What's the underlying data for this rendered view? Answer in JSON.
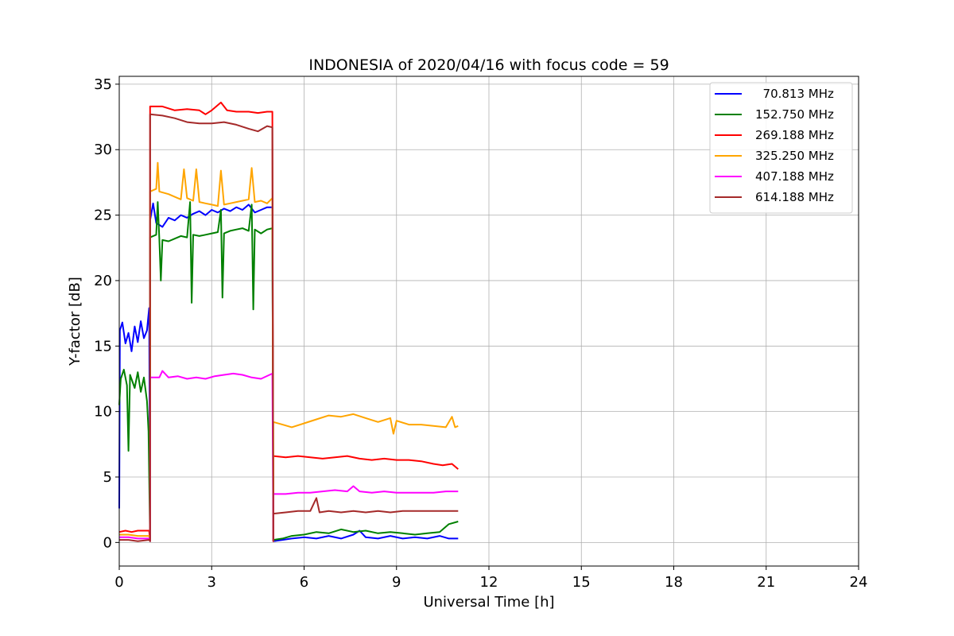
{
  "chart_data": {
    "type": "line",
    "title": "INDONESIA of 2020/04/16 with focus code = 59",
    "xlabel": "Universal Time [h]",
    "ylabel": "Y-factor [dB]",
    "xlim": [
      0,
      24
    ],
    "ylim": [
      -1.8,
      35.6
    ],
    "xticks": [
      0,
      3,
      6,
      9,
      12,
      15,
      18,
      21,
      24
    ],
    "yticks": [
      0,
      5,
      10,
      15,
      20,
      25,
      30,
      35
    ],
    "grid": true,
    "legend_position": "top-right",
    "series": [
      {
        "name": "  70.813 MHz",
        "color": "#0000ff",
        "points": [
          [
            0,
            2.6
          ],
          [
            0.02,
            16.2
          ],
          [
            0.1,
            16.8
          ],
          [
            0.2,
            15.2
          ],
          [
            0.3,
            16.0
          ],
          [
            0.4,
            14.6
          ],
          [
            0.5,
            16.5
          ],
          [
            0.6,
            15.3
          ],
          [
            0.7,
            16.9
          ],
          [
            0.8,
            15.6
          ],
          [
            0.9,
            16.2
          ],
          [
            0.97,
            17.9
          ],
          [
            1.0,
            0.1
          ],
          [
            1.0,
            24.6
          ],
          [
            1.1,
            25.9
          ],
          [
            1.2,
            24.4
          ],
          [
            1.4,
            24.1
          ],
          [
            1.6,
            24.8
          ],
          [
            1.8,
            24.6
          ],
          [
            2.0,
            25.0
          ],
          [
            2.2,
            24.8
          ],
          [
            2.4,
            25.1
          ],
          [
            2.6,
            25.3
          ],
          [
            2.8,
            25.0
          ],
          [
            3.0,
            25.4
          ],
          [
            3.2,
            25.2
          ],
          [
            3.4,
            25.5
          ],
          [
            3.6,
            25.3
          ],
          [
            3.8,
            25.6
          ],
          [
            4.0,
            25.4
          ],
          [
            4.2,
            25.8
          ],
          [
            4.4,
            25.2
          ],
          [
            4.6,
            25.4
          ],
          [
            4.8,
            25.6
          ],
          [
            4.97,
            25.6
          ],
          [
            5.0,
            0.1
          ],
          [
            5.0,
            0.1
          ],
          [
            5.3,
            0.2
          ],
          [
            5.6,
            0.3
          ],
          [
            6.0,
            0.4
          ],
          [
            6.4,
            0.3
          ],
          [
            6.8,
            0.5
          ],
          [
            7.2,
            0.3
          ],
          [
            7.6,
            0.6
          ],
          [
            7.8,
            0.9
          ],
          [
            8.0,
            0.4
          ],
          [
            8.4,
            0.3
          ],
          [
            8.8,
            0.5
          ],
          [
            9.2,
            0.3
          ],
          [
            9.6,
            0.4
          ],
          [
            10.0,
            0.3
          ],
          [
            10.4,
            0.5
          ],
          [
            10.7,
            0.3
          ],
          [
            11.0,
            0.3
          ]
        ]
      },
      {
        "name": "152.750 MHz",
        "color": "#008000",
        "points": [
          [
            0,
            10.5
          ],
          [
            0.05,
            12.5
          ],
          [
            0.15,
            13.2
          ],
          [
            0.25,
            12.0
          ],
          [
            0.3,
            7.0
          ],
          [
            0.35,
            12.8
          ],
          [
            0.5,
            11.8
          ],
          [
            0.6,
            13.0
          ],
          [
            0.7,
            11.5
          ],
          [
            0.8,
            12.6
          ],
          [
            0.9,
            10.8
          ],
          [
            0.95,
            8.5
          ],
          [
            1.0,
            0.1
          ],
          [
            1.0,
            23.3
          ],
          [
            1.2,
            23.5
          ],
          [
            1.25,
            26.0
          ],
          [
            1.3,
            23.2
          ],
          [
            1.35,
            20.0
          ],
          [
            1.4,
            23.1
          ],
          [
            1.6,
            23.0
          ],
          [
            1.8,
            23.2
          ],
          [
            2.0,
            23.4
          ],
          [
            2.2,
            23.3
          ],
          [
            2.3,
            26.0
          ],
          [
            2.35,
            18.3
          ],
          [
            2.4,
            23.5
          ],
          [
            2.6,
            23.4
          ],
          [
            2.8,
            23.5
          ],
          [
            3.0,
            23.6
          ],
          [
            3.2,
            23.7
          ],
          [
            3.3,
            25.4
          ],
          [
            3.35,
            18.7
          ],
          [
            3.4,
            23.6
          ],
          [
            3.6,
            23.8
          ],
          [
            3.8,
            23.9
          ],
          [
            4.0,
            24.0
          ],
          [
            4.2,
            23.8
          ],
          [
            4.3,
            25.8
          ],
          [
            4.35,
            17.8
          ],
          [
            4.4,
            23.9
          ],
          [
            4.6,
            23.6
          ],
          [
            4.8,
            23.9
          ],
          [
            4.97,
            24.0
          ],
          [
            5.0,
            2.5
          ],
          [
            5.0,
            0.2
          ],
          [
            5.3,
            0.3
          ],
          [
            5.6,
            0.5
          ],
          [
            6.0,
            0.6
          ],
          [
            6.4,
            0.8
          ],
          [
            6.8,
            0.7
          ],
          [
            7.2,
            1.0
          ],
          [
            7.6,
            0.8
          ],
          [
            8.0,
            0.9
          ],
          [
            8.4,
            0.7
          ],
          [
            8.8,
            0.8
          ],
          [
            9.2,
            0.7
          ],
          [
            9.6,
            0.6
          ],
          [
            10.0,
            0.7
          ],
          [
            10.4,
            0.8
          ],
          [
            10.7,
            1.4
          ],
          [
            11.0,
            1.6
          ]
        ]
      },
      {
        "name": "269.188 MHz",
        "color": "#ff0000",
        "points": [
          [
            0,
            0.8
          ],
          [
            0.2,
            0.9
          ],
          [
            0.4,
            0.8
          ],
          [
            0.6,
            0.9
          ],
          [
            0.8,
            0.9
          ],
          [
            0.97,
            0.9
          ],
          [
            1.0,
            0.1
          ],
          [
            1.0,
            33.3
          ],
          [
            1.4,
            33.3
          ],
          [
            1.8,
            33.0
          ],
          [
            2.2,
            33.1
          ],
          [
            2.6,
            33.0
          ],
          [
            2.8,
            32.7
          ],
          [
            3.0,
            33.0
          ],
          [
            3.3,
            33.6
          ],
          [
            3.5,
            33.0
          ],
          [
            3.8,
            32.9
          ],
          [
            4.2,
            32.9
          ],
          [
            4.5,
            32.8
          ],
          [
            4.8,
            32.9
          ],
          [
            4.97,
            32.9
          ],
          [
            5.0,
            0.1
          ],
          [
            5.0,
            6.6
          ],
          [
            5.4,
            6.5
          ],
          [
            5.8,
            6.6
          ],
          [
            6.2,
            6.5
          ],
          [
            6.6,
            6.4
          ],
          [
            7.0,
            6.5
          ],
          [
            7.4,
            6.6
          ],
          [
            7.8,
            6.4
          ],
          [
            8.2,
            6.3
          ],
          [
            8.6,
            6.4
          ],
          [
            9.0,
            6.3
          ],
          [
            9.4,
            6.3
          ],
          [
            9.8,
            6.2
          ],
          [
            10.2,
            6.0
          ],
          [
            10.5,
            5.9
          ],
          [
            10.8,
            6.0
          ],
          [
            11.0,
            5.6
          ]
        ]
      },
      {
        "name": "325.250 MHz",
        "color": "#ffa500",
        "points": [
          [
            0,
            0.6
          ],
          [
            0.3,
            0.6
          ],
          [
            0.6,
            0.5
          ],
          [
            0.97,
            0.5
          ],
          [
            1.0,
            0.1
          ],
          [
            1.0,
            26.8
          ],
          [
            1.2,
            27.0
          ],
          [
            1.25,
            29.0
          ],
          [
            1.3,
            26.8
          ],
          [
            1.6,
            26.6
          ],
          [
            1.9,
            26.3
          ],
          [
            2.0,
            26.2
          ],
          [
            2.1,
            28.5
          ],
          [
            2.2,
            26.3
          ],
          [
            2.4,
            26.1
          ],
          [
            2.5,
            28.5
          ],
          [
            2.6,
            26.0
          ],
          [
            2.8,
            25.9
          ],
          [
            3.0,
            25.8
          ],
          [
            3.2,
            25.7
          ],
          [
            3.3,
            28.4
          ],
          [
            3.4,
            25.8
          ],
          [
            3.6,
            25.9
          ],
          [
            3.8,
            26.0
          ],
          [
            4.0,
            26.1
          ],
          [
            4.2,
            26.2
          ],
          [
            4.3,
            28.6
          ],
          [
            4.4,
            26.0
          ],
          [
            4.6,
            26.1
          ],
          [
            4.8,
            25.9
          ],
          [
            4.97,
            26.3
          ],
          [
            5.0,
            0.1
          ],
          [
            5.0,
            9.2
          ],
          [
            5.3,
            9.0
          ],
          [
            5.6,
            8.8
          ],
          [
            6.0,
            9.1
          ],
          [
            6.4,
            9.4
          ],
          [
            6.8,
            9.7
          ],
          [
            7.2,
            9.6
          ],
          [
            7.6,
            9.8
          ],
          [
            8.0,
            9.5
          ],
          [
            8.4,
            9.2
          ],
          [
            8.8,
            9.5
          ],
          [
            8.9,
            8.3
          ],
          [
            9.0,
            9.3
          ],
          [
            9.4,
            9.0
          ],
          [
            9.8,
            9.0
          ],
          [
            10.2,
            8.9
          ],
          [
            10.6,
            8.8
          ],
          [
            10.8,
            9.6
          ],
          [
            10.9,
            8.8
          ],
          [
            11.0,
            8.9
          ]
        ]
      },
      {
        "name": "407.188 MHz",
        "color": "#ff00ff",
        "points": [
          [
            0,
            0.4
          ],
          [
            0.3,
            0.4
          ],
          [
            0.6,
            0.3
          ],
          [
            0.97,
            0.3
          ],
          [
            1.0,
            0.1
          ],
          [
            1.0,
            12.6
          ],
          [
            1.3,
            12.6
          ],
          [
            1.4,
            13.1
          ],
          [
            1.6,
            12.6
          ],
          [
            1.9,
            12.7
          ],
          [
            2.2,
            12.5
          ],
          [
            2.5,
            12.6
          ],
          [
            2.8,
            12.5
          ],
          [
            3.1,
            12.7
          ],
          [
            3.4,
            12.8
          ],
          [
            3.7,
            12.9
          ],
          [
            4.0,
            12.8
          ],
          [
            4.3,
            12.6
          ],
          [
            4.6,
            12.5
          ],
          [
            4.97,
            12.9
          ],
          [
            5.0,
            0.1
          ],
          [
            5.0,
            3.7
          ],
          [
            5.4,
            3.7
          ],
          [
            5.8,
            3.8
          ],
          [
            6.2,
            3.8
          ],
          [
            6.6,
            3.9
          ],
          [
            7.0,
            4.0
          ],
          [
            7.4,
            3.9
          ],
          [
            7.6,
            4.3
          ],
          [
            7.8,
            3.9
          ],
          [
            8.2,
            3.8
          ],
          [
            8.6,
            3.9
          ],
          [
            9.0,
            3.8
          ],
          [
            9.4,
            3.8
          ],
          [
            9.8,
            3.8
          ],
          [
            10.2,
            3.8
          ],
          [
            10.6,
            3.9
          ],
          [
            11.0,
            3.9
          ]
        ]
      },
      {
        "name": "614.188 MHz",
        "color": "#a52a2a",
        "points": [
          [
            0,
            0.2
          ],
          [
            0.3,
            0.2
          ],
          [
            0.6,
            0.1
          ],
          [
            0.97,
            0.2
          ],
          [
            1.0,
            0.1
          ],
          [
            1.0,
            32.7
          ],
          [
            1.4,
            32.6
          ],
          [
            1.8,
            32.4
          ],
          [
            2.2,
            32.1
          ],
          [
            2.6,
            32.0
          ],
          [
            3.0,
            32.0
          ],
          [
            3.4,
            32.1
          ],
          [
            3.8,
            31.9
          ],
          [
            4.2,
            31.6
          ],
          [
            4.5,
            31.4
          ],
          [
            4.8,
            31.8
          ],
          [
            4.97,
            31.7
          ],
          [
            5.0,
            0.1
          ],
          [
            5.0,
            2.2
          ],
          [
            5.4,
            2.3
          ],
          [
            5.8,
            2.4
          ],
          [
            6.2,
            2.4
          ],
          [
            6.4,
            3.4
          ],
          [
            6.5,
            2.3
          ],
          [
            6.8,
            2.4
          ],
          [
            7.2,
            2.3
          ],
          [
            7.6,
            2.4
          ],
          [
            8.0,
            2.3
          ],
          [
            8.4,
            2.4
          ],
          [
            8.8,
            2.3
          ],
          [
            9.2,
            2.4
          ],
          [
            9.6,
            2.4
          ],
          [
            10.0,
            2.4
          ],
          [
            10.4,
            2.4
          ],
          [
            10.8,
            2.4
          ],
          [
            11.0,
            2.4
          ]
        ]
      }
    ]
  }
}
